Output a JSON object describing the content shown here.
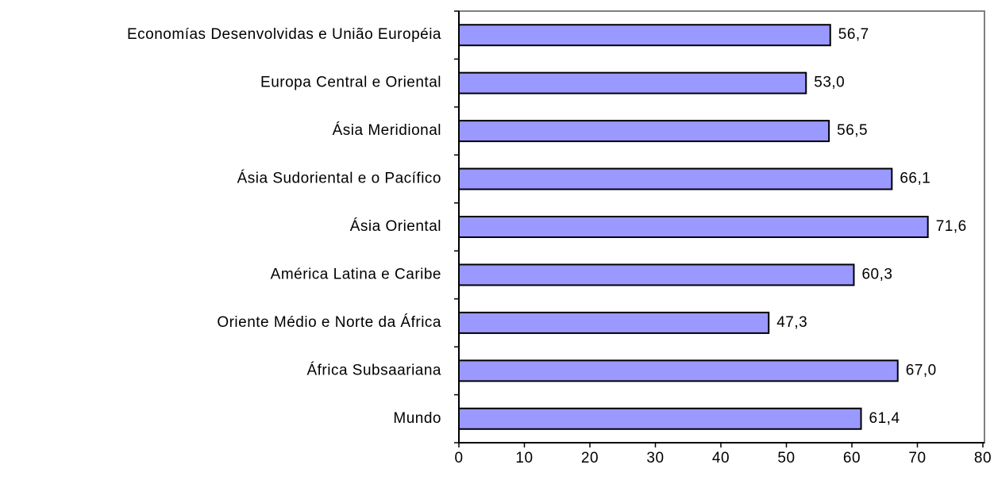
{
  "chart_data": {
    "type": "bar",
    "orientation": "horizontal",
    "categories": [
      "Economías Desenvolvidas e União Européia",
      "Europa Central e Oriental",
      "Ásia Meridional",
      "Ásia Sudoriental e o Pacífico",
      "Ásia Oriental",
      "América Latina e Caribe",
      "Oriente Médio e Norte da África",
      "África Subsaariana",
      "Mundo"
    ],
    "values": [
      56.7,
      53.0,
      56.5,
      66.1,
      71.6,
      60.3,
      47.3,
      67.0,
      61.4
    ],
    "value_labels": [
      "56,7",
      "53,0",
      "56,5",
      "66,1",
      "71,6",
      "60,3",
      "47,3",
      "67,0",
      "61,4"
    ],
    "color": "#9999ff",
    "xlim": [
      0,
      80
    ],
    "xticks": [
      0,
      10,
      20,
      30,
      40,
      50,
      60,
      70,
      80
    ]
  }
}
